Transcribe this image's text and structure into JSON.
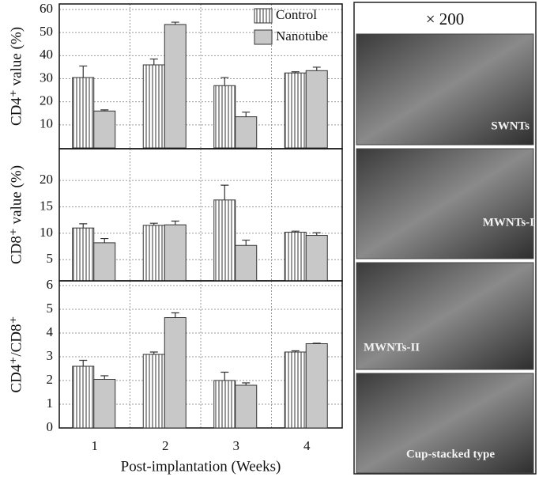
{
  "chart_data": [
    {
      "type": "bar",
      "ylabel": "CD4⁺ value (%)",
      "ylim": [
        0,
        60
      ],
      "yticks": [
        10,
        20,
        30,
        40,
        50,
        60
      ],
      "grid": true,
      "legend": "upper right",
      "series": [
        {
          "name": "Control",
          "color": "#ffffff",
          "values": [
            30.5,
            36,
            27,
            32.5
          ],
          "errors": [
            5,
            2.5,
            3.5,
            0.5
          ]
        },
        {
          "name": "Nanotube",
          "color": "#c8c8c8",
          "values": [
            16,
            53.5,
            13.5,
            33.5
          ],
          "errors": [
            0.5,
            1,
            2,
            1.5
          ]
        }
      ]
    },
    {
      "type": "bar",
      "ylabel": "CD8⁺ value (%)",
      "ylim": [
        1,
        26
      ],
      "yticks": [
        5,
        10,
        15,
        20
      ],
      "grid": true,
      "series": [
        {
          "color": "#ffffff",
          "values": [
            11,
            11.5,
            16.3,
            10.2
          ],
          "errors": [
            0.8,
            0.4,
            2.8,
            0.2
          ]
        },
        {
          "color": "#c8c8c8",
          "values": [
            8.2,
            11.6,
            7.7,
            9.6
          ],
          "errors": [
            0.8,
            0.7,
            1,
            0.5
          ]
        }
      ]
    },
    {
      "type": "bar",
      "ylabel": "CD4⁺/CD8⁺",
      "xlabel": "Post-implantation (Weeks)",
      "categories": [
        "1",
        "2",
        "3",
        "4"
      ],
      "ylim": [
        0,
        6
      ],
      "yticks": [
        0,
        1,
        2,
        3,
        4,
        5,
        6
      ],
      "grid": true,
      "series": [
        {
          "color": "#ffffff",
          "values": [
            2.6,
            3.1,
            2,
            3.2
          ],
          "errors": [
            0.25,
            0.1,
            0.35,
            0.05
          ]
        },
        {
          "color": "#c8c8c8",
          "values": [
            2.05,
            4.65,
            1.8,
            3.55
          ],
          "errors": [
            0.15,
            0.2,
            0.1,
            0.02
          ]
        }
      ]
    }
  ],
  "images": {
    "magnification": "× 200",
    "labels": [
      "SWNTs",
      "MWNTs-I",
      "MWNTs-II",
      "Cup-stacked type"
    ]
  }
}
